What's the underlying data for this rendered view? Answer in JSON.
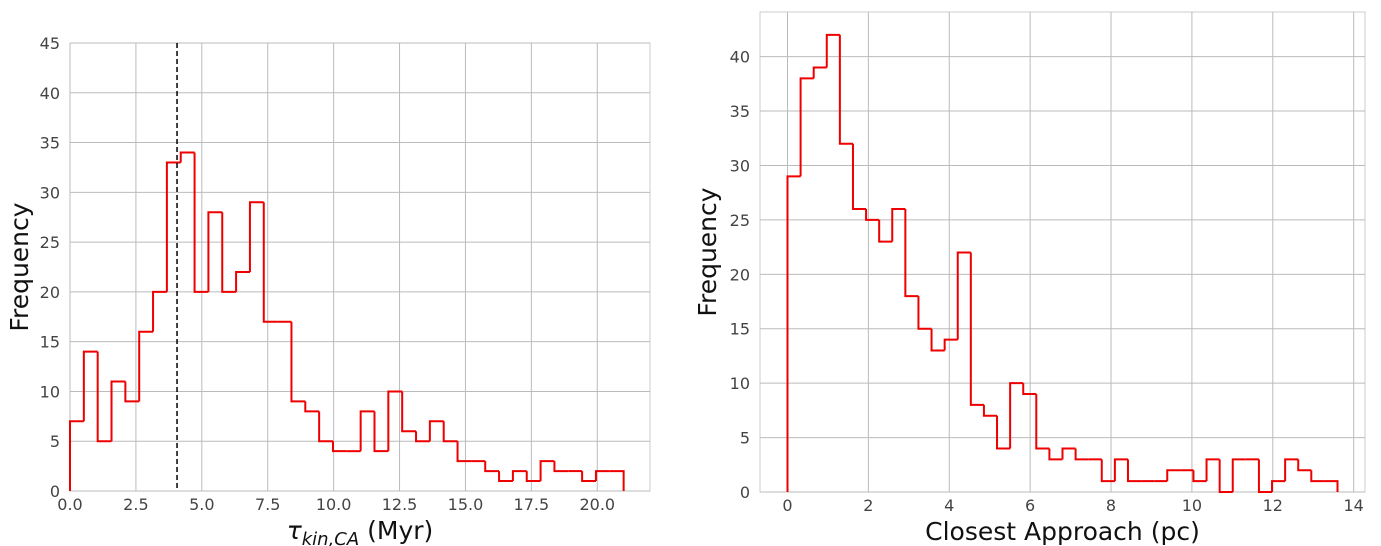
{
  "chart_data": [
    {
      "type": "histogram",
      "color": "#ee0000",
      "grid": true,
      "bins": [
        0,
        0.525,
        1.05,
        1.575,
        2.1,
        2.625,
        3.15,
        3.675,
        4.2,
        4.725,
        5.25,
        5.775,
        6.3,
        6.825,
        7.35,
        7.875,
        8.4,
        8.925,
        9.45,
        9.975,
        10.5,
        11.025,
        11.55,
        12.075,
        12.6,
        13.125,
        13.65,
        14.175,
        14.7,
        15.225,
        15.75,
        16.275,
        16.8,
        17.325,
        17.85,
        18.375,
        18.9,
        19.425,
        19.95,
        20.475,
        21.0
      ],
      "values": [
        7,
        14,
        5,
        11,
        9,
        16,
        20,
        33,
        34,
        20,
        28,
        20,
        22,
        29,
        17,
        17,
        9,
        8,
        5,
        4,
        4,
        8,
        4,
        10,
        6,
        5,
        7,
        5,
        3,
        3,
        2,
        1,
        2,
        1,
        3,
        2,
        2,
        1,
        2,
        2
      ],
      "vline": 4.06,
      "vline_color": "#000000",
      "xlim": [
        0,
        22
      ],
      "ylim": [
        0,
        45
      ],
      "xticks": [
        {
          "value": 0,
          "label": "0.0"
        },
        2.5,
        {
          "value": 5,
          "label": "5.0"
        },
        7.5,
        {
          "value": 10,
          "label": "10.0"
        },
        12.5,
        {
          "value": 15,
          "label": "15.0"
        },
        17.5,
        {
          "value": 20,
          "label": "20.0"
        }
      ],
      "yticks": [
        0,
        5,
        10,
        15,
        20,
        25,
        30,
        35,
        40,
        45
      ],
      "xlabel": {
        "symbol": "τ",
        "subscript": "kin,CA",
        "text": "(Myr)"
      },
      "ylabel": "Frequency"
    },
    {
      "type": "histogram",
      "color": "#ee0000",
      "grid": true,
      "bins": [
        0,
        0.324,
        0.648,
        0.971,
        1.295,
        1.619,
        1.943,
        2.267,
        2.59,
        2.914,
        3.238,
        3.562,
        3.886,
        4.21,
        4.533,
        4.857,
        5.181,
        5.505,
        5.829,
        6.152,
        6.476,
        6.8,
        7.124,
        7.448,
        7.771,
        8.095,
        8.419,
        8.743,
        9.067,
        9.39,
        9.714,
        10.038,
        10.362,
        10.686,
        11.01,
        11.333,
        11.657,
        11.981,
        12.305,
        12.629,
        12.952,
        13.276,
        13.6
      ],
      "values": [
        29,
        38,
        39,
        42,
        32,
        26,
        25,
        23,
        26,
        18,
        15,
        13,
        14,
        22,
        8,
        7,
        4,
        10,
        9,
        4,
        3,
        4,
        3,
        3,
        1,
        3,
        1,
        1,
        1,
        2,
        2,
        1,
        3,
        0,
        3,
        3,
        0,
        1,
        3,
        2,
        1,
        1
      ],
      "xlim": [
        -0.68,
        14.28
      ],
      "ylim": [
        0,
        44.1
      ],
      "xticks": [
        0,
        2,
        4,
        6,
        8,
        10,
        12,
        14
      ],
      "yticks": [
        0,
        5,
        10,
        15,
        20,
        25,
        30,
        35,
        40
      ],
      "xlabel": "Closest Approach (pc)",
      "ylabel": "Frequency"
    }
  ]
}
